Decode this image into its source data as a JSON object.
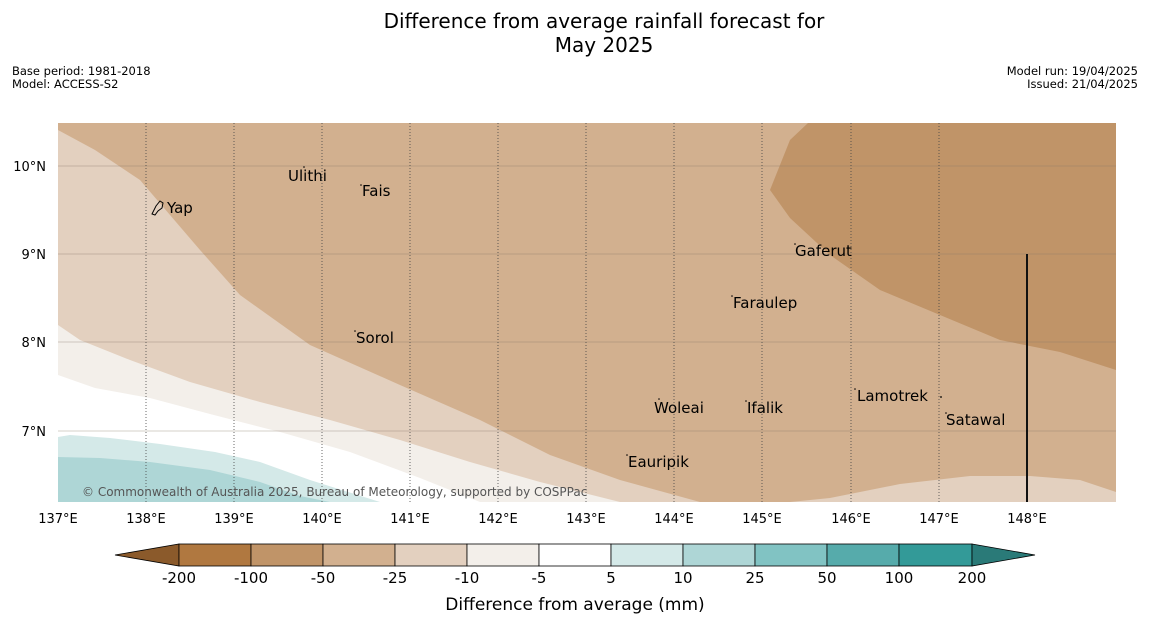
{
  "title_line1": "Difference from average rainfall forecast for",
  "title_line2": "May 2025",
  "meta": {
    "base_period": "Base period: 1981-2018",
    "model": "Model: ACCESS-S2",
    "model_run": "Model run: 19/04/2025",
    "issued": "Issued: 21/04/2025"
  },
  "map": {
    "lon_ticks": [
      "137°E",
      "138°E",
      "139°E",
      "140°E",
      "141°E",
      "142°E",
      "143°E",
      "144°E",
      "145°E",
      "146°E",
      "147°E",
      "148°E"
    ],
    "lat_ticks": [
      "10°N",
      "9°N",
      "8°N",
      "7°N"
    ],
    "copyright": "© Commonwealth of Australia 2025, Bureau of Meteorology, supported by COSPPac",
    "places": [
      {
        "name": "Ulithi"
      },
      {
        "name": "Fais"
      },
      {
        "name": "Yap"
      },
      {
        "name": "Gaferut"
      },
      {
        "name": "Faraulep"
      },
      {
        "name": "Sorol"
      },
      {
        "name": "Lamotrek"
      },
      {
        "name": "Woleai"
      },
      {
        "name": "Ifalik"
      },
      {
        "name": "Satawal"
      },
      {
        "name": "Eauripik"
      }
    ]
  },
  "legend": {
    "title": "Difference from average (mm)",
    "ticks": [
      "-200",
      "-100",
      "-50",
      "-25",
      "-10",
      "-5",
      "5",
      "10",
      "25",
      "50",
      "100",
      "200"
    ],
    "colors": [
      "#8b5a2b",
      "#b07840",
      "#c09468",
      "#d2b08f",
      "#e3d0bf",
      "#f3efea",
      "#ffffff",
      "#d4e9e8",
      "#aed6d6",
      "#81c3c3",
      "#56abab",
      "#339a98",
      "#2a7a78"
    ]
  }
}
